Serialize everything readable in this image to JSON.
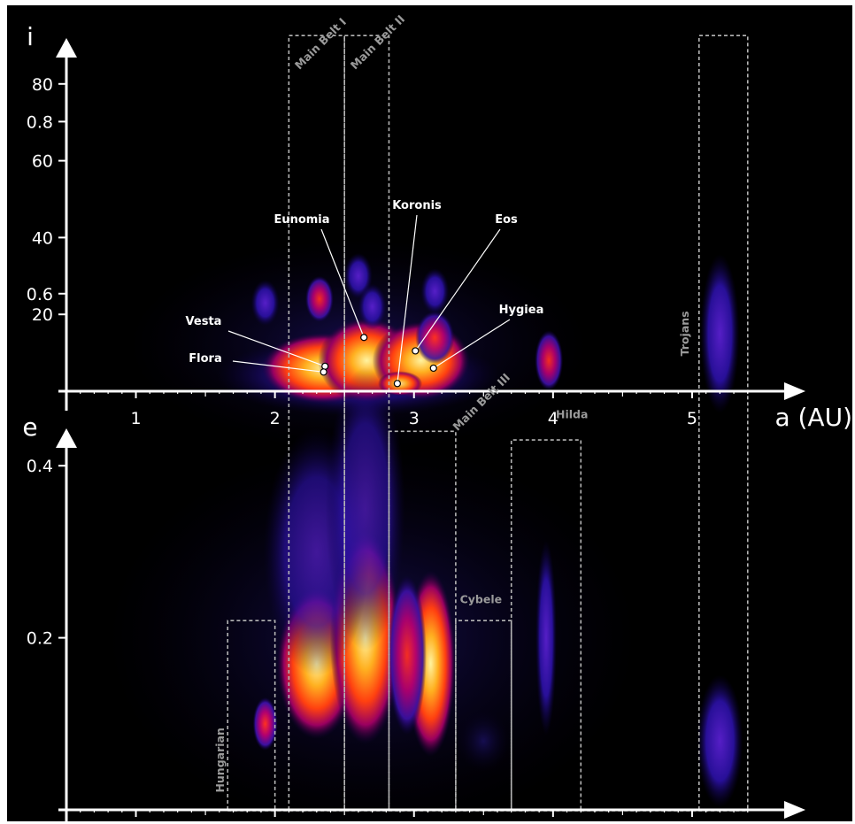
{
  "chart_data": [
    {
      "type": "heatmap",
      "xlabel": "a (AU)",
      "ylabel": "i",
      "xlim": [
        0.5,
        5.4
      ],
      "ylim": [
        0,
        88
      ],
      "xticks": [
        "1",
        "2",
        "3",
        "4",
        "5"
      ],
      "yticks": [
        "20",
        "40",
        "60",
        "80"
      ],
      "ytick_values": [
        20,
        40,
        60,
        80
      ],
      "families": [
        {
          "name": "Vesta",
          "a": 2.36,
          "i": 6.5
        },
        {
          "name": "Flora",
          "a": 2.35,
          "i": 5.0
        },
        {
          "name": "Eunomia",
          "a": 2.64,
          "i": 14.0
        },
        {
          "name": "Koronis",
          "a": 2.88,
          "i": 2.0
        },
        {
          "name": "Eos",
          "a": 3.01,
          "i": 10.5
        },
        {
          "name": "Hygiea",
          "a": 3.14,
          "i": 6.0
        }
      ],
      "clusters": [
        {
          "a": 1.93,
          "i": 23,
          "level": 0.35
        },
        {
          "a": 2.32,
          "i": 24,
          "level": 0.4
        },
        {
          "a": 2.6,
          "i": 30,
          "level": 0.35
        },
        {
          "a": 2.7,
          "i": 22,
          "level": 0.3
        },
        {
          "a": 3.15,
          "i": 26,
          "level": 0.35
        },
        {
          "a": 3.97,
          "i": 8,
          "level": 0.4
        },
        {
          "a": 5.2,
          "i": 15,
          "level": 0.3
        }
      ]
    },
    {
      "type": "heatmap",
      "xlabel": "a (AU)",
      "ylabel": "e",
      "xlim": [
        0.5,
        5.4
      ],
      "ylim": [
        0,
        0.93
      ],
      "xticks": [
        "1",
        "2",
        "3",
        "4",
        "5"
      ],
      "yticks": [
        "0.2",
        "0.4",
        "0.6",
        "0.8"
      ],
      "ytick_values": [
        0.2,
        0.4,
        0.6,
        0.8
      ],
      "groups": [
        {
          "name": "Hungarian",
          "a_min": 1.66,
          "a_max": 2.0,
          "e_max": 0.22
        },
        {
          "name": "Main Belt I",
          "a_min": 2.1,
          "a_max": 2.5,
          "e_max": 0.9
        },
        {
          "name": "Main Belt II",
          "a_min": 2.5,
          "a_max": 2.82,
          "e_max": 0.9
        },
        {
          "name": "Main Belt III",
          "a_min": 2.82,
          "a_max": 3.3,
          "e_max": 0.44
        },
        {
          "name": "Cybele",
          "a_min": 3.3,
          "a_max": 3.7,
          "e_max": 0.22
        },
        {
          "name": "Hilda",
          "a_min": 3.7,
          "a_max": 4.2,
          "e_max": 0.43
        },
        {
          "name": "Trojans",
          "a_min": 5.05,
          "a_max": 5.4,
          "e_max": 0.9
        }
      ]
    }
  ]
}
